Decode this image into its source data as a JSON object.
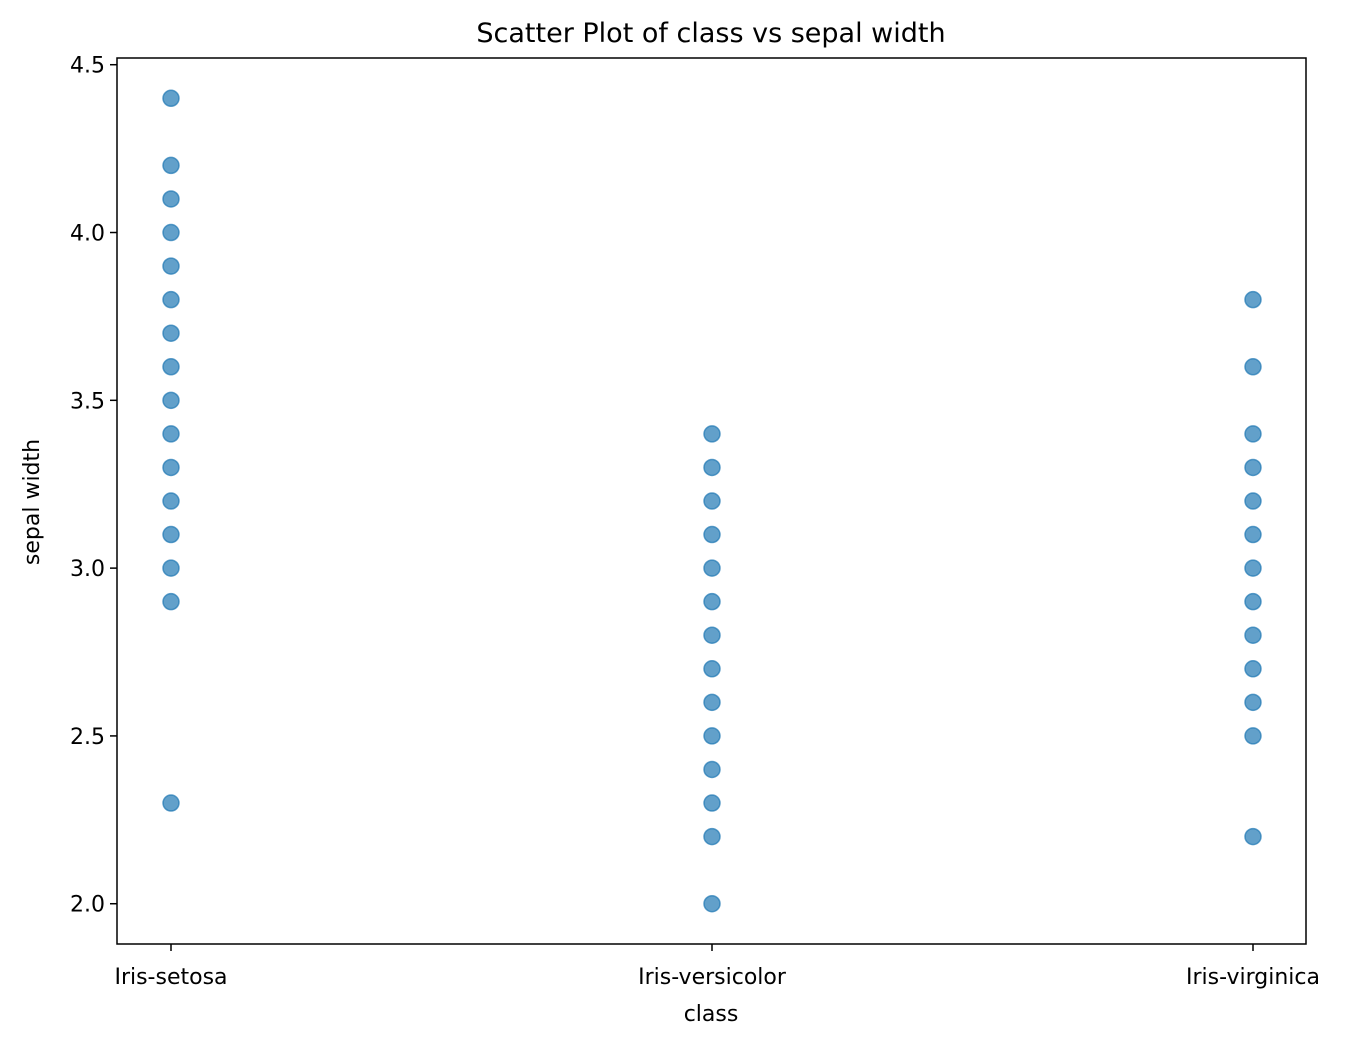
{
  "chart_data": {
    "type": "scatter",
    "title": "Scatter Plot of class vs sepal width",
    "xlabel": "class",
    "ylabel": "sepal width",
    "categories": [
      "Iris-setosa",
      "Iris-versicolor",
      "Iris-virginica"
    ],
    "ylim": [
      1.88,
      4.52
    ],
    "yticks": [
      2.0,
      2.5,
      3.0,
      3.5,
      4.0,
      4.5
    ],
    "ytick_labels": [
      "2.0",
      "2.5",
      "3.0",
      "3.5",
      "4.0",
      "4.5"
    ],
    "grid": false,
    "marker_color": "#1f77b4",
    "marker_alpha": 0.7,
    "series": [
      {
        "category": "Iris-setosa",
        "y": [
          4.4,
          4.2,
          4.1,
          4.0,
          3.9,
          3.8,
          3.7,
          3.6,
          3.5,
          3.4,
          3.3,
          3.2,
          3.1,
          3.0,
          2.9,
          2.3
        ]
      },
      {
        "category": "Iris-versicolor",
        "y": [
          3.4,
          3.3,
          3.2,
          3.1,
          3.0,
          2.9,
          2.8,
          2.7,
          2.6,
          2.5,
          2.4,
          2.3,
          2.2,
          2.0
        ]
      },
      {
        "category": "Iris-virginica",
        "y": [
          3.8,
          3.6,
          3.4,
          3.3,
          3.2,
          3.1,
          3.0,
          2.9,
          2.8,
          2.7,
          2.6,
          2.5,
          2.2
        ]
      }
    ]
  }
}
